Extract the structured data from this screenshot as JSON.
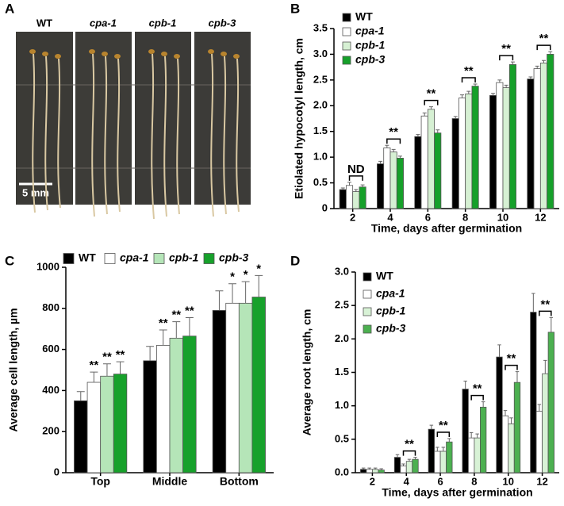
{
  "photo_panel": {
    "panel": "A",
    "labels": [
      "WT",
      "cpa-1",
      "cpb-1",
      "cpb-3"
    ],
    "scale_bar": "5 mm"
  },
  "chart_data": [
    {
      "type": "bar",
      "panel": "B",
      "ylabel": "Etiolated hypocotyl length, cm",
      "xlabel": "Time, days after germination",
      "categories": [
        "2",
        "4",
        "6",
        "8",
        "10",
        "12"
      ],
      "ylim": [
        0,
        3.5
      ],
      "yticks": [
        0,
        0.5,
        {
          "value": 1,
          "label": "1.0"
        },
        1.5,
        {
          "value": 2,
          "label": "2.0"
        },
        2.5,
        {
          "value": 3,
          "label": "3.0"
        },
        3.5
      ],
      "legend": "top-left",
      "group_annotations": [
        "ND",
        "**",
        "**",
        "**",
        "**",
        "**"
      ],
      "series": [
        {
          "name": "WT",
          "color": "#000000",
          "values": [
            0.37,
            0.87,
            1.4,
            1.75,
            2.2,
            2.52
          ],
          "errors": [
            0.03,
            0.05,
            0.04,
            0.04,
            0.04,
            0.04
          ]
        },
        {
          "name": "cpa-1",
          "color": "#ffffff",
          "values": [
            0.45,
            1.18,
            1.8,
            2.15,
            2.45,
            2.72
          ],
          "errors": [
            0.06,
            0.05,
            0.06,
            0.06,
            0.05,
            0.05
          ]
        },
        {
          "name": "cpb-1",
          "color": "#d6f0d3",
          "values": [
            0.33,
            1.1,
            1.93,
            2.23,
            2.35,
            2.83
          ],
          "errors": [
            0.04,
            0.05,
            0.05,
            0.05,
            0.05,
            0.05
          ]
        },
        {
          "name": "cpb-3",
          "color": "#16a02a",
          "values": [
            0.42,
            0.98,
            1.47,
            2.38,
            2.8,
            3.0
          ],
          "errors": [
            0.04,
            0.04,
            0.06,
            0.04,
            0.05,
            0.05
          ]
        }
      ]
    },
    {
      "type": "bar",
      "panel": "C",
      "ylabel": "Average cell length, µm",
      "categories": [
        "Top",
        "Middle",
        "Bottom"
      ],
      "ylim": [
        0,
        1000
      ],
      "yticks": [
        0,
        200,
        400,
        600,
        800,
        1000
      ],
      "legend": "top",
      "series": [
        {
          "name": "WT",
          "color": "#000000",
          "values": [
            350,
            545,
            790
          ],
          "errors": [
            45,
            70,
            95
          ]
        },
        {
          "name": "cpa-1",
          "color": "#ffffff",
          "values": [
            440,
            620,
            825
          ],
          "errors": [
            50,
            75,
            95
          ],
          "annotations": [
            "**",
            "**",
            "*"
          ]
        },
        {
          "name": "cpb-1",
          "color": "#b5e5b8",
          "values": [
            470,
            655,
            825
          ],
          "errors": [
            60,
            80,
            105
          ],
          "annotations": [
            "**",
            "**",
            "*"
          ]
        },
        {
          "name": "cpb-3",
          "color": "#17a12b",
          "values": [
            480,
            665,
            855
          ],
          "errors": [
            60,
            90,
            105
          ],
          "annotations": [
            "**",
            "**",
            "*"
          ]
        }
      ]
    },
    {
      "type": "bar",
      "panel": "D",
      "ylabel": "Average root length, cm",
      "xlabel": "Time, days after germination",
      "categories": [
        "2",
        "4",
        "6",
        "8",
        "10",
        "12"
      ],
      "ylim": [
        0,
        3.0
      ],
      "yticks": [
        {
          "value": 0,
          "label": "0.0"
        },
        0.5,
        {
          "value": 1,
          "label": "1.0"
        },
        1.5,
        {
          "value": 2,
          "label": "2.0"
        },
        2.5,
        {
          "value": 3,
          "label": "3.0"
        }
      ],
      "legend": "top-left",
      "group_annotations": [
        null,
        "**",
        "**",
        "**",
        "**",
        "**"
      ],
      "series": [
        {
          "name": "WT",
          "color": "#000000",
          "values": [
            0.05,
            0.23,
            0.65,
            1.25,
            1.73,
            2.4
          ],
          "errors": [
            0.02,
            0.04,
            0.06,
            0.12,
            0.18,
            0.28
          ]
        },
        {
          "name": "cpa-1",
          "color": "#ffffff",
          "values": [
            0.05,
            0.1,
            0.32,
            0.52,
            0.85,
            0.92
          ],
          "errors": [
            0.02,
            0.03,
            0.06,
            0.08,
            0.08,
            0.1
          ]
        },
        {
          "name": "cpb-1",
          "color": "#d8f2d6",
          "values": [
            0.05,
            0.17,
            0.32,
            0.52,
            0.73,
            1.48
          ],
          "errors": [
            0.02,
            0.03,
            0.06,
            0.06,
            0.09,
            0.2
          ]
        },
        {
          "name": "cpb-3",
          "color": "#4cb050",
          "values": [
            0.04,
            0.2,
            0.46,
            0.98,
            1.35,
            2.1
          ],
          "errors": [
            0.02,
            0.03,
            0.05,
            0.08,
            0.16,
            0.22
          ]
        }
      ]
    }
  ]
}
